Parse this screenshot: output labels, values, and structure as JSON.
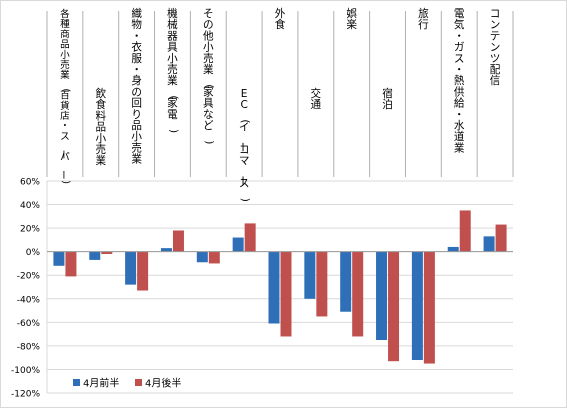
{
  "chart_data": {
    "type": "bar",
    "categories": [
      "各種商品小売業(百貨店・スーパー)",
      "飲食料品小売業",
      "織物・衣服・身の回り品小売業",
      "機械器具小売業(家電)",
      "その他小売業(家具など)",
      "EC(イーコマース)",
      "外食",
      "交通",
      "娯楽",
      "宿泊",
      "旅行",
      "電気・ガス・熱供給・水道業",
      "コンテンツ配信"
    ],
    "series": [
      {
        "name": "4月前半",
        "color": "#2e6fb7",
        "values": [
          -12,
          -7,
          -28,
          3,
          -9,
          12,
          -61,
          -40,
          -51,
          -75,
          -92,
          4,
          13
        ]
      },
      {
        "name": "4月後半",
        "color": "#c0504d",
        "values": [
          -21,
          -2,
          -33,
          18,
          -10,
          24,
          -72,
          -55,
          -72,
          -93,
          -95,
          35,
          23
        ]
      }
    ],
    "ylim": [
      -120,
      60
    ],
    "yticks": [
      60,
      40,
      20,
      0,
      -20,
      -40,
      -60,
      -80,
      -100,
      -120
    ],
    "ytick_labels": [
      "60%",
      "40%",
      "20%",
      "0%",
      "-20%",
      "-40%",
      "-60%",
      "-80%",
      "-100%",
      "-120%"
    ],
    "grid": true,
    "legend_position": "bottom-left"
  }
}
